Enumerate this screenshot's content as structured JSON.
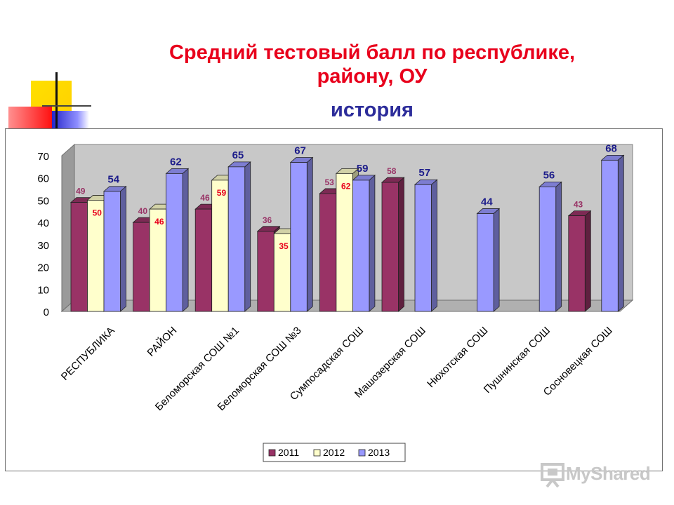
{
  "title_line1": "Средний тестовый балл по республике,",
  "title_line2": "району, ОУ",
  "subtitle": "история",
  "watermark_text": "MyShared",
  "colors": {
    "title": "#e8001c",
    "subtitle": "#2c2c9a",
    "s2011": "#993366",
    "s2012": "#ffffcc",
    "s2013": "#9999ff",
    "label2011": "#993366",
    "label2012": "#e8001c",
    "label2013": "#1c1c8a"
  },
  "chart_data": {
    "type": "bar",
    "categories": [
      "РЕСПУБЛИКА",
      "РАЙОН",
      "Беломорская СОШ №1",
      "Беломорская СОШ №3",
      "Сумпосадская СОШ",
      "Машозерская СОШ",
      "Нюхотская СОШ",
      "Пушнинская СОШ",
      "Сосновецкая СОШ"
    ],
    "series": [
      {
        "name": "2011",
        "values": [
          49,
          40,
          46,
          36,
          53,
          58,
          null,
          null,
          43
        ]
      },
      {
        "name": "2012",
        "values": [
          50,
          46,
          59,
          35,
          62,
          null,
          null,
          null,
          null
        ]
      },
      {
        "name": "2013",
        "values": [
          54,
          62,
          65,
          67,
          59,
          57,
          44,
          56,
          68
        ]
      }
    ],
    "ylim": [
      0,
      70
    ],
    "yticks": [
      0,
      10,
      20,
      30,
      40,
      50,
      60,
      70
    ],
    "legend": [
      "2011",
      "2012",
      "2013"
    ],
    "legend_position": "bottom",
    "grid": false,
    "three_d": true
  }
}
